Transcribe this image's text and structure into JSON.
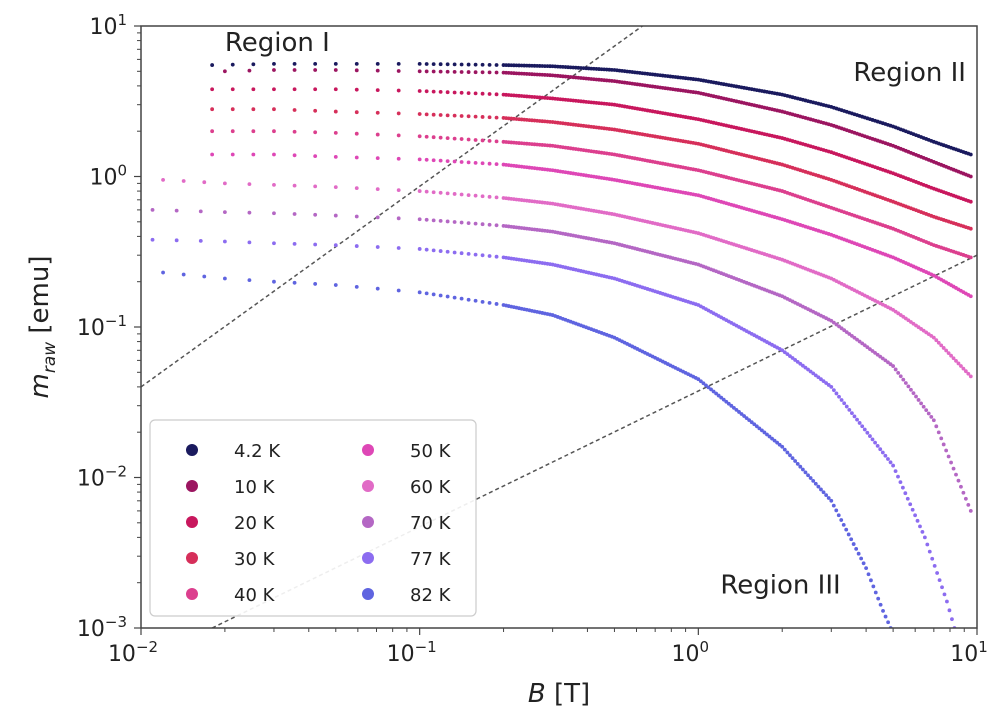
{
  "chart_data": {
    "type": "scatter",
    "title": "",
    "xlabel": "B [T]",
    "xlabel_italic": "B",
    "xlabel_unit": "[T]",
    "ylabel_base": "m",
    "ylabel_sub": "raw",
    "ylabel_unit": "[emu]",
    "xscale": "log",
    "yscale": "log",
    "xlim": [
      0.01,
      10
    ],
    "ylim": [
      0.001,
      10
    ],
    "x_ticks": [
      {
        "value": 0.01,
        "base": "10",
        "exp": "−2"
      },
      {
        "value": 0.1,
        "base": "10",
        "exp": "−1"
      },
      {
        "value": 1,
        "base": "10",
        "exp": "0"
      },
      {
        "value": 10,
        "base": "10",
        "exp": "1"
      }
    ],
    "y_ticks": [
      {
        "value": 0.001,
        "base": "10",
        "exp": "−3"
      },
      {
        "value": 0.01,
        "base": "10",
        "exp": "−2"
      },
      {
        "value": 0.1,
        "base": "10",
        "exp": "−1"
      },
      {
        "value": 1,
        "base": "10",
        "exp": "0"
      },
      {
        "value": 10,
        "base": "10",
        "exp": "1"
      }
    ],
    "grid": false,
    "legend_position": "lower-left",
    "legend_columns": 2,
    "series": [
      {
        "name": "4.2 K",
        "color": "#1a1a5e",
        "x": [
          0.018,
          0.03,
          0.05,
          0.1,
          0.2,
          0.3,
          0.5,
          1,
          2,
          3,
          5,
          7,
          9.5
        ],
        "y": [
          5.5,
          5.6,
          5.6,
          5.6,
          5.5,
          5.4,
          5.1,
          4.4,
          3.5,
          2.9,
          2.15,
          1.7,
          1.4
        ]
      },
      {
        "name": "10 K",
        "color": "#9b1560",
        "x": [
          0.02,
          0.03,
          0.05,
          0.1,
          0.2,
          0.3,
          0.5,
          1,
          2,
          3,
          5,
          7,
          9.5
        ],
        "y": [
          5.0,
          5.1,
          5.1,
          5.0,
          4.9,
          4.7,
          4.3,
          3.6,
          2.7,
          2.2,
          1.6,
          1.25,
          1.0
        ]
      },
      {
        "name": "20 K",
        "color": "#c8175d",
        "x": [
          0.018,
          0.03,
          0.05,
          0.1,
          0.2,
          0.3,
          0.5,
          1,
          2,
          3,
          5,
          7,
          9.5
        ],
        "y": [
          3.8,
          3.8,
          3.8,
          3.7,
          3.5,
          3.3,
          3.0,
          2.4,
          1.8,
          1.45,
          1.05,
          0.83,
          0.68
        ]
      },
      {
        "name": "30 K",
        "color": "#d62f5a",
        "x": [
          0.018,
          0.03,
          0.05,
          0.1,
          0.2,
          0.3,
          0.5,
          1,
          2,
          3,
          5,
          7,
          9.5
        ],
        "y": [
          2.8,
          2.8,
          2.7,
          2.6,
          2.45,
          2.3,
          2.05,
          1.65,
          1.2,
          0.95,
          0.68,
          0.54,
          0.45
        ]
      },
      {
        "name": "40 K",
        "color": "#dc3f8e",
        "x": [
          0.018,
          0.03,
          0.05,
          0.1,
          0.2,
          0.3,
          0.5,
          1,
          2,
          3,
          5,
          7,
          9.5
        ],
        "y": [
          2.0,
          2.0,
          1.95,
          1.85,
          1.7,
          1.6,
          1.4,
          1.1,
          0.8,
          0.62,
          0.45,
          0.35,
          0.29
        ]
      },
      {
        "name": "50 K",
        "color": "#de47b6",
        "x": [
          0.018,
          0.03,
          0.05,
          0.1,
          0.2,
          0.3,
          0.5,
          1,
          2,
          3,
          5,
          7,
          9.5
        ],
        "y": [
          1.4,
          1.4,
          1.35,
          1.3,
          1.2,
          1.1,
          0.95,
          0.75,
          0.52,
          0.41,
          0.29,
          0.22,
          0.16
        ]
      },
      {
        "name": "60 K",
        "color": "#e16bc6",
        "x": [
          0.012,
          0.02,
          0.03,
          0.05,
          0.1,
          0.2,
          0.3,
          0.5,
          1,
          2,
          3,
          5,
          7,
          9.5
        ],
        "y": [
          0.95,
          0.9,
          0.88,
          0.85,
          0.8,
          0.72,
          0.66,
          0.56,
          0.42,
          0.28,
          0.21,
          0.13,
          0.085,
          0.047
        ]
      },
      {
        "name": "70 K",
        "color": "#b467c4",
        "x": [
          0.011,
          0.02,
          0.03,
          0.05,
          0.1,
          0.2,
          0.3,
          0.5,
          1,
          2,
          3,
          5,
          7,
          9.5
        ],
        "y": [
          0.6,
          0.58,
          0.57,
          0.55,
          0.52,
          0.47,
          0.43,
          0.36,
          0.26,
          0.16,
          0.11,
          0.055,
          0.024,
          0.006
        ]
      },
      {
        "name": "77 K",
        "color": "#8c6cf0",
        "x": [
          0.011,
          0.02,
          0.03,
          0.05,
          0.1,
          0.2,
          0.3,
          0.5,
          1,
          2,
          3,
          5,
          6.5,
          7.8,
          8.3
        ],
        "y": [
          0.38,
          0.37,
          0.36,
          0.35,
          0.33,
          0.29,
          0.26,
          0.21,
          0.14,
          0.07,
          0.04,
          0.012,
          0.004,
          0.0015,
          0.001
        ]
      },
      {
        "name": "82 K",
        "color": "#5f64e0",
        "x": [
          0.012,
          0.02,
          0.03,
          0.05,
          0.1,
          0.2,
          0.3,
          0.5,
          1,
          2,
          3,
          4,
          4.6,
          4.9
        ],
        "y": [
          0.23,
          0.21,
          0.2,
          0.19,
          0.17,
          0.14,
          0.12,
          0.085,
          0.045,
          0.016,
          0.007,
          0.0025,
          0.0013,
          0.001
        ]
      }
    ],
    "reference_lines": [
      {
        "name": "upper-dashed-line",
        "x": [
          0.01,
          0.63
        ],
        "y": [
          0.04,
          10
        ],
        "color": "#555555",
        "style": "dashed"
      },
      {
        "name": "lower-dashed-line",
        "x": [
          0.018,
          10
        ],
        "y": [
          0.001,
          0.3
        ],
        "color": "#555555",
        "style": "dashed"
      }
    ],
    "annotations": [
      {
        "text": "Region I",
        "x": 0.02,
        "y": 6.8
      },
      {
        "text": "Region II",
        "x": 3.6,
        "y": 4.3
      },
      {
        "text": "Region III",
        "x": 1.2,
        "y": 0.0017
      }
    ]
  }
}
